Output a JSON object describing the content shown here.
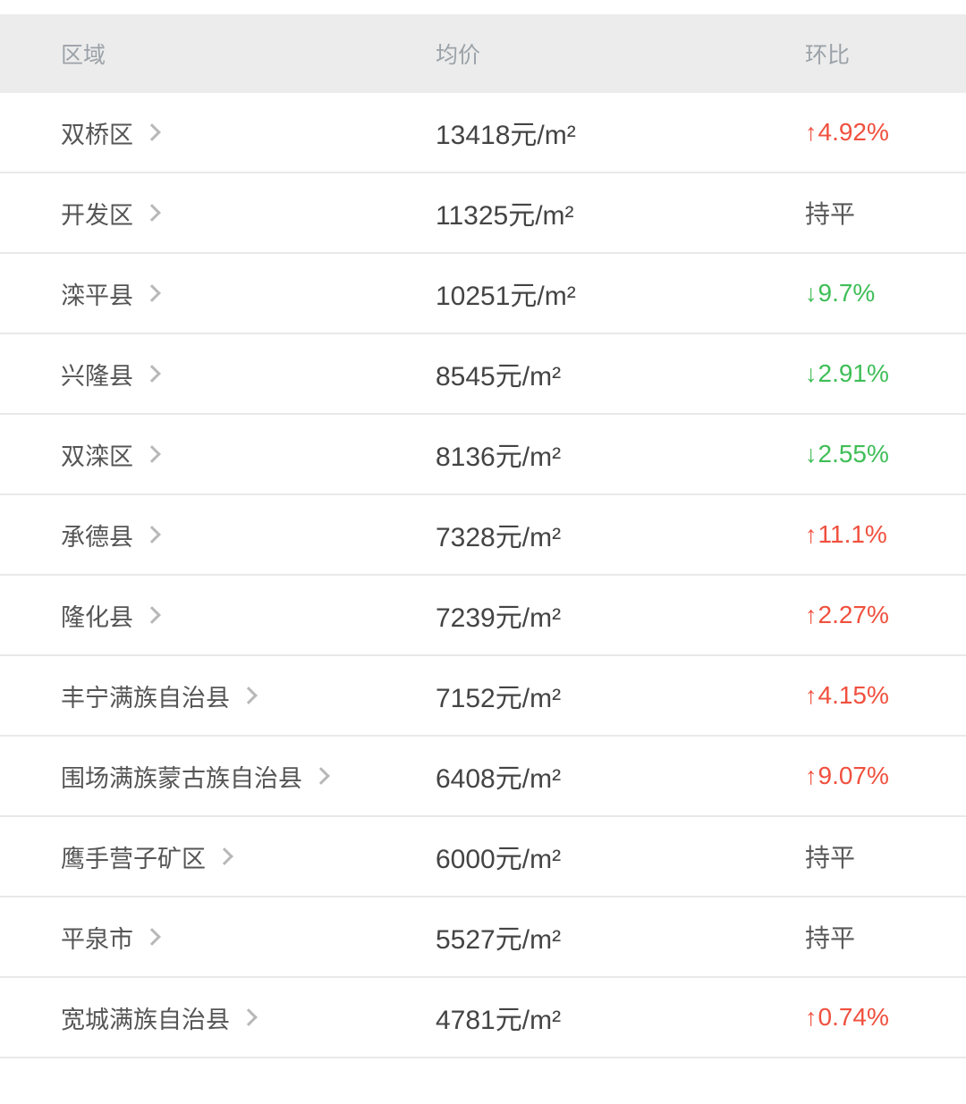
{
  "table": {
    "headers": {
      "region": "区域",
      "price": "均价",
      "change": "环比"
    },
    "rows": [
      {
        "region": "双桥区",
        "price": "13418元/m²",
        "change": "4.92%",
        "direction": "up"
      },
      {
        "region": "开发区",
        "price": "11325元/m²",
        "change": "持平",
        "direction": "flat"
      },
      {
        "region": "滦平县",
        "price": "10251元/m²",
        "change": "9.7%",
        "direction": "down"
      },
      {
        "region": "兴隆县",
        "price": "8545元/m²",
        "change": "2.91%",
        "direction": "down"
      },
      {
        "region": "双滦区",
        "price": "8136元/m²",
        "change": "2.55%",
        "direction": "down"
      },
      {
        "region": "承德县",
        "price": "7328元/m²",
        "change": "11.1%",
        "direction": "up"
      },
      {
        "region": "隆化县",
        "price": "7239元/m²",
        "change": "2.27%",
        "direction": "up"
      },
      {
        "region": "丰宁满族自治县",
        "price": "7152元/m²",
        "change": "4.15%",
        "direction": "up"
      },
      {
        "region": "围场满族蒙古族自治县",
        "price": "6408元/m²",
        "change": "9.07%",
        "direction": "up"
      },
      {
        "region": "鹰手营子矿区",
        "price": "6000元/m²",
        "change": "持平",
        "direction": "flat"
      },
      {
        "region": "平泉市",
        "price": "5527元/m²",
        "change": "持平",
        "direction": "flat"
      },
      {
        "region": "宽城满族自治县",
        "price": "4781元/m²",
        "change": "0.74%",
        "direction": "up"
      }
    ]
  },
  "icons": {
    "arrow_up": "↑",
    "arrow_down": "↓",
    "chevron_right": "chevron-right"
  },
  "colors": {
    "up": "#f0503e",
    "down": "#3fbe57",
    "flat": "#595959",
    "header_bg": "#ececec",
    "header_text": "#9ba2a8",
    "region_text": "#555555",
    "price_text": "#444444",
    "separator": "#e9e9e9"
  }
}
